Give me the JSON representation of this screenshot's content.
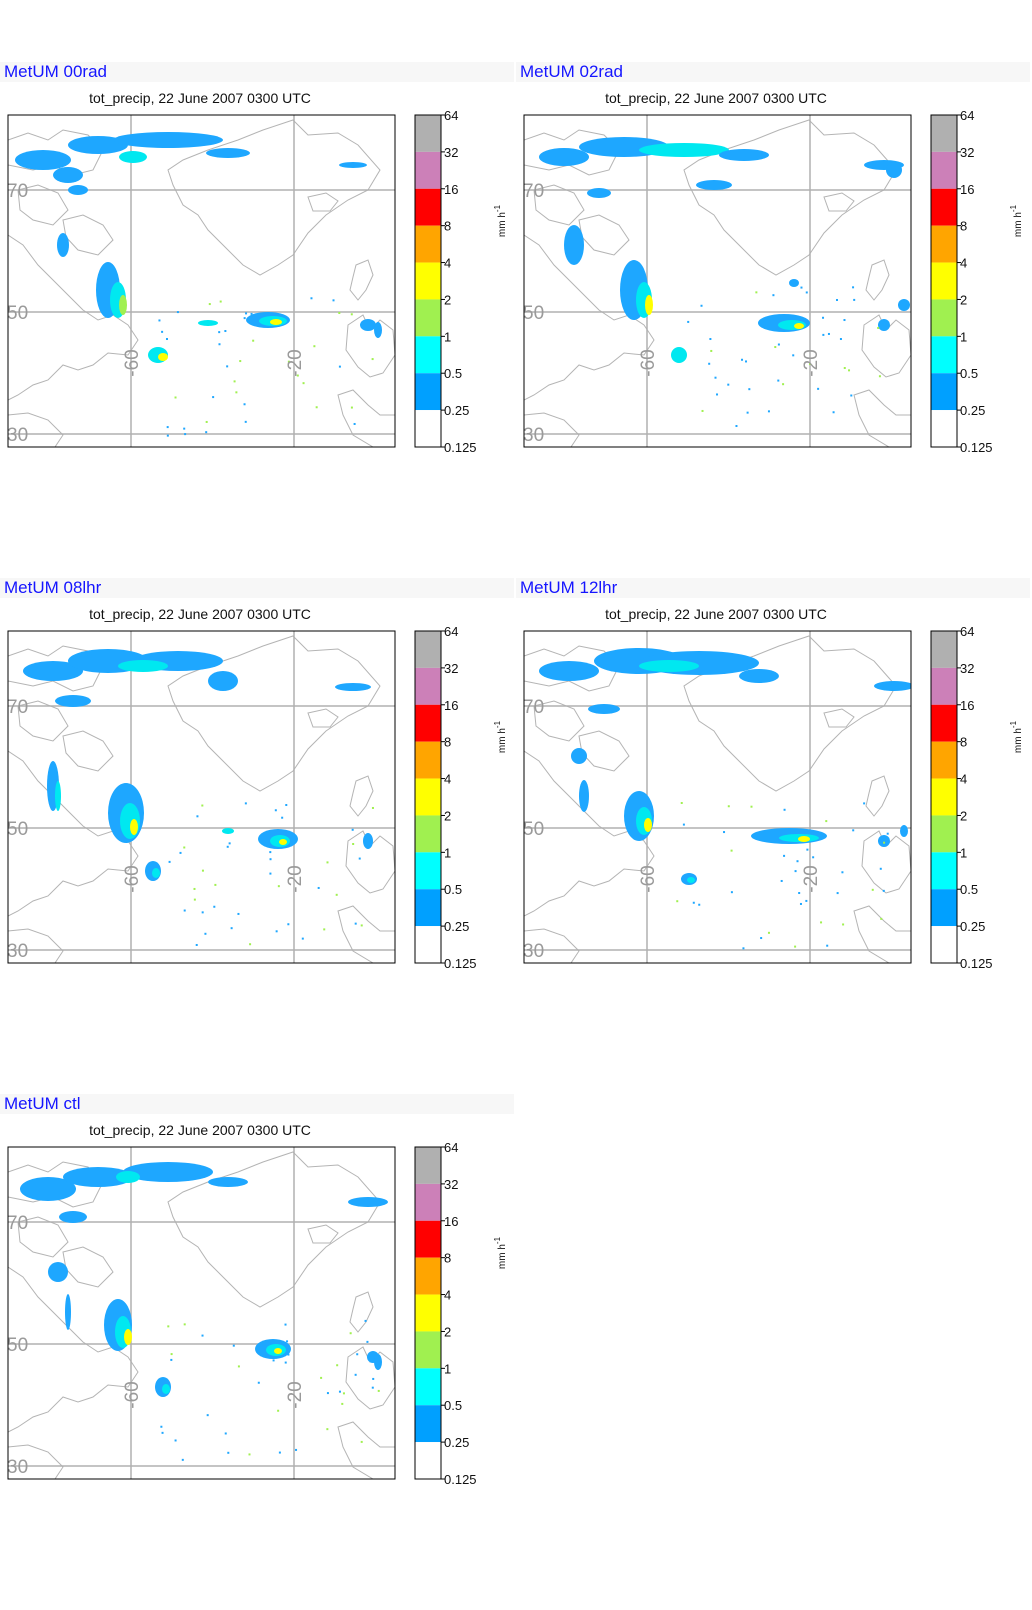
{
  "subtitle": "tot_precip, 22 June 2007 0300 UTC",
  "panels": [
    {
      "title": "MetUM 00rad"
    },
    {
      "title": "MetUM 02rad"
    },
    {
      "title": "MetUM 08lhr"
    },
    {
      "title": "MetUM 12lhr"
    },
    {
      "title": "MetUM ctl"
    }
  ],
  "map_axes": {
    "lat_labels": [
      "70",
      "50",
      "30"
    ],
    "lon_labels": [
      "-60",
      "-20"
    ]
  },
  "colorbar": {
    "unit": "mm h",
    "unit_exponent": "-1",
    "levels": [
      "64",
      "32",
      "16",
      "8",
      "4",
      "2",
      "1",
      "0.5",
      "0.25",
      "0.125"
    ],
    "colors": [
      "#b0b0b0",
      "#cc80b8",
      "#ff0000",
      "#ffa500",
      "#ffff00",
      "#a0f050",
      "#00ffff",
      "#00a0ff",
      "#ffffff"
    ]
  },
  "precip_colors": {
    "light": "#1ea7ff",
    "moderate": "#00e8f0",
    "heavy": "#a0f050",
    "intense": "#ffff00"
  }
}
